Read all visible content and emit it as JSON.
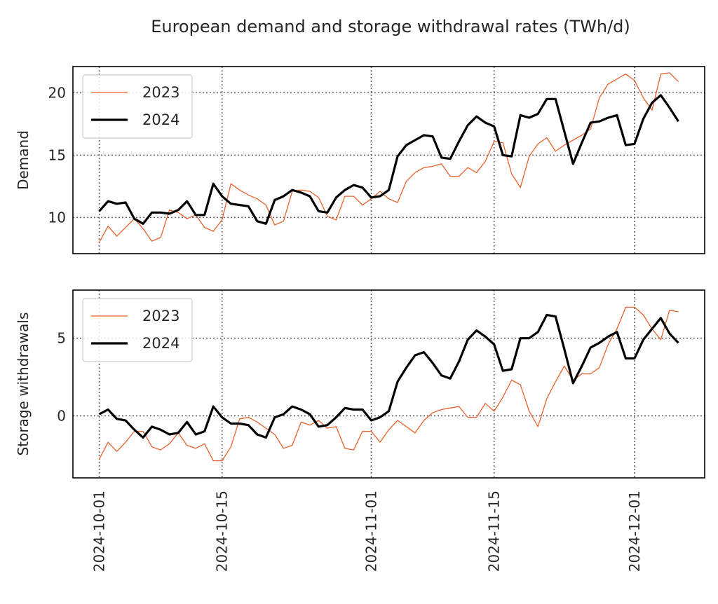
{
  "title": "European demand and storage withdrawal rates (TWh/d)",
  "colors": {
    "2023": "#e8612c",
    "2024": "#000000"
  },
  "chart_data": [
    {
      "type": "line",
      "ylabel": "Demand",
      "ylim": [
        7.1,
        22.1
      ],
      "yticks": [
        10,
        15,
        20
      ],
      "xlim": [
        "2024-09-28",
        "2024-12-09"
      ],
      "xticks": [
        "2024-10-01",
        "2024-10-15",
        "2024-11-01",
        "2024-11-15",
        "2024-12-01"
      ],
      "grid": true,
      "legend": "top-left",
      "series": [
        {
          "name": "2023",
          "values": [
            8.0,
            9.3,
            8.5,
            9.2,
            9.9,
            9.1,
            8.1,
            8.4,
            10.6,
            10.4,
            9.9,
            10.2,
            9.2,
            8.9,
            9.8,
            12.7,
            12.2,
            11.8,
            11.5,
            11.0,
            9.4,
            9.7,
            12.1,
            12.2,
            12.1,
            11.6,
            10.1,
            9.8,
            11.7,
            11.7,
            11.0,
            11.5,
            12.1,
            11.5,
            11.2,
            12.9,
            13.6,
            14.0,
            14.1,
            14.3,
            13.3,
            13.3,
            14.0,
            13.6,
            14.5,
            16.1,
            16.0,
            13.5,
            12.4,
            14.9,
            15.9,
            16.4,
            15.3,
            15.8,
            16.2,
            16.6,
            17.1,
            19.6,
            20.7,
            21.1,
            21.5,
            21.0,
            19.6,
            18.6,
            21.5,
            21.6,
            20.9
          ]
        },
        {
          "name": "2024",
          "values": [
            10.5,
            11.3,
            11.1,
            11.2,
            9.9,
            9.5,
            10.4,
            10.4,
            10.3,
            10.6,
            11.3,
            10.2,
            10.2,
            12.7,
            11.7,
            11.1,
            11.0,
            10.9,
            9.7,
            9.5,
            11.4,
            11.7,
            12.2,
            12.0,
            11.7,
            10.5,
            10.4,
            11.6,
            12.2,
            12.6,
            12.4,
            11.6,
            11.7,
            12.2,
            14.9,
            15.8,
            16.2,
            16.6,
            16.5,
            14.8,
            14.7,
            16.1,
            17.4,
            18.1,
            17.6,
            17.3,
            15.0,
            14.9,
            18.2,
            18.0,
            18.3,
            19.5,
            19.5,
            16.9,
            14.3,
            16.0,
            17.6,
            17.7,
            18.0,
            18.2,
            15.8,
            15.9,
            17.9,
            19.2,
            19.8,
            18.8,
            17.7
          ]
        }
      ]
    },
    {
      "type": "line",
      "ylabel": "Storage withdrawals",
      "ylim": [
        -4.0,
        8.1
      ],
      "yticks": [
        0,
        5
      ],
      "xlim": [
        "2024-09-28",
        "2024-12-09"
      ],
      "xticks": [
        "2024-10-01",
        "2024-10-15",
        "2024-11-01",
        "2024-11-15",
        "2024-12-01"
      ],
      "grid": true,
      "legend": "top-left",
      "series": [
        {
          "name": "2023",
          "values": [
            -2.8,
            -1.7,
            -2.3,
            -1.7,
            -1.0,
            -1.0,
            -2.0,
            -2.2,
            -1.8,
            -1.1,
            -1.9,
            -2.1,
            -1.8,
            -2.9,
            -2.9,
            -2.0,
            -0.2,
            -0.1,
            -0.4,
            -0.8,
            -1.2,
            -2.1,
            -1.9,
            -0.4,
            -0.6,
            -0.3,
            -0.8,
            -0.7,
            -2.1,
            -2.2,
            -1.0,
            -1.0,
            -1.7,
            -0.9,
            -0.3,
            -0.7,
            -1.1,
            -0.3,
            0.2,
            0.4,
            0.5,
            0.6,
            -0.1,
            -0.1,
            0.8,
            0.3,
            1.2,
            2.3,
            2.0,
            0.3,
            -0.7,
            1.1,
            2.2,
            3.2,
            2.3,
            2.7,
            2.7,
            3.1,
            4.6,
            5.6,
            7.0,
            7.0,
            6.5,
            5.6,
            4.9,
            6.8,
            6.7
          ]
        },
        {
          "name": "2024",
          "values": [
            0.1,
            0.4,
            -0.2,
            -0.3,
            -0.9,
            -1.4,
            -0.7,
            -0.9,
            -1.2,
            -1.1,
            -0.4,
            -1.2,
            -1.0,
            0.6,
            -0.1,
            -0.5,
            -0.5,
            -0.6,
            -1.2,
            -1.4,
            -0.1,
            0.1,
            0.6,
            0.4,
            0.1,
            -0.7,
            -0.6,
            -0.1,
            0.5,
            0.4,
            0.4,
            -0.3,
            -0.1,
            0.3,
            2.2,
            3.1,
            3.9,
            4.1,
            3.4,
            2.6,
            2.4,
            3.5,
            4.9,
            5.5,
            5.1,
            4.6,
            2.9,
            3.0,
            5.0,
            5.0,
            5.4,
            6.5,
            6.4,
            4.3,
            2.1,
            3.2,
            4.4,
            4.7,
            5.1,
            5.4,
            3.7,
            3.7,
            4.9,
            5.6,
            6.3,
            5.3,
            4.7
          ]
        }
      ]
    }
  ],
  "x_dates_start": "2024-10-01"
}
